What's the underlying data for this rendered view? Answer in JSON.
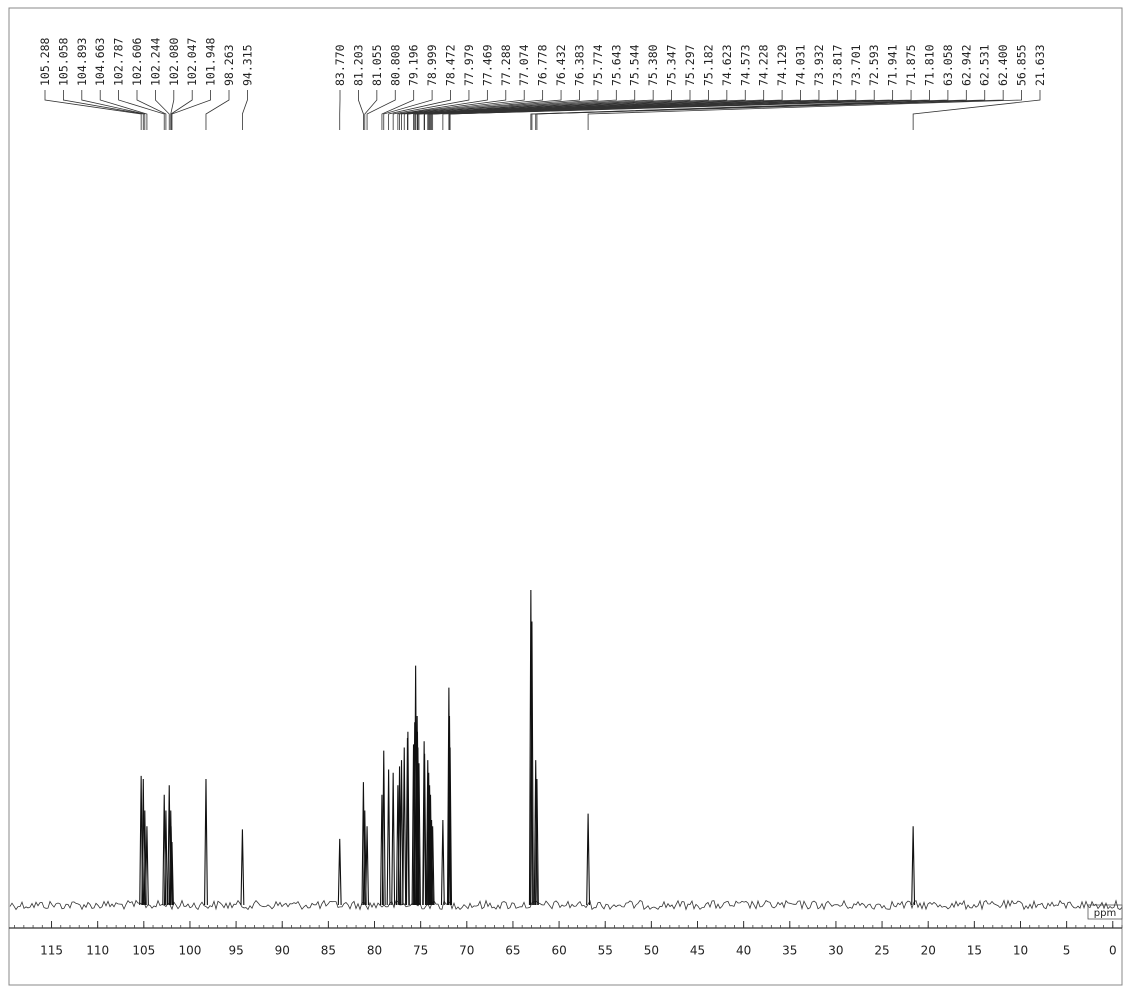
{
  "chart_data": {
    "type": "nmr",
    "x_label": "ppm",
    "xlim": [
      119.5,
      -1
    ],
    "xticks": [
      115,
      110,
      105,
      100,
      95,
      90,
      85,
      80,
      75,
      70,
      65,
      60,
      55,
      50,
      45,
      40,
      35,
      30,
      25,
      20,
      15,
      10,
      5,
      0
    ],
    "x": [
      105.288,
      105.058,
      104.893,
      104.663,
      102.787,
      102.606,
      102.244,
      102.08,
      102.047,
      101.948,
      98.263,
      94.315,
      83.77,
      81.203,
      81.055,
      80.808,
      79.196,
      78.999,
      78.472,
      77.979,
      77.469,
      77.288,
      77.074,
      76.778,
      76.432,
      76.383,
      75.774,
      75.643,
      75.544,
      75.38,
      75.347,
      75.297,
      75.182,
      74.623,
      74.573,
      74.228,
      74.129,
      74.031,
      73.932,
      73.817,
      73.701,
      72.593,
      71.941,
      71.875,
      71.81,
      63.058,
      62.942,
      62.531,
      62.4,
      56.855,
      21.633
    ],
    "x_labels": [
      "105.288",
      "105.058",
      "104.893",
      "104.663",
      "102.787",
      "102.606",
      "102.244",
      "102.080",
      "102.047",
      "101.948",
      "98.263",
      "94.315",
      "83.770",
      "81.203",
      "81.055",
      "80.808",
      "79.196",
      "78.999",
      "78.472",
      "77.979",
      "77.469",
      "77.288",
      "77.074",
      "76.778",
      "76.432",
      "76.383",
      "75.774",
      "75.643",
      "75.544",
      "75.380",
      "75.347",
      "75.297",
      "75.182",
      "74.623",
      "74.573",
      "74.228",
      "74.129",
      "74.031",
      "73.932",
      "73.817",
      "73.701",
      "72.593",
      "71.941",
      "71.875",
      "71.810",
      "63.058",
      "62.942",
      "62.531",
      "62.400",
      "56.855",
      "21.633"
    ],
    "values": [
      41,
      40,
      30,
      25,
      35,
      30,
      38,
      30,
      25,
      20,
      40,
      24,
      21,
      39,
      30,
      25,
      35,
      49,
      43,
      42,
      38,
      44,
      46,
      50,
      53,
      55,
      51,
      58,
      76,
      60,
      55,
      50,
      45,
      52,
      48,
      46,
      42,
      38,
      35,
      27,
      25,
      27,
      69,
      60,
      50,
      100,
      90,
      46,
      40,
      29,
      25
    ],
    "color": "#111111"
  }
}
